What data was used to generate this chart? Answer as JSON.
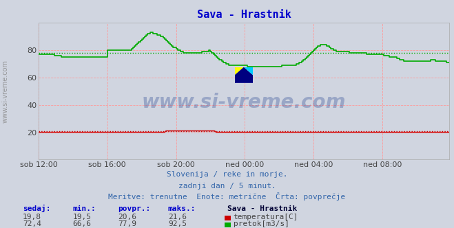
{
  "title": "Sava - Hrastnik",
  "title_color": "#0000cc",
  "bg_color": "#d0d5e0",
  "plot_bg_color": "#d0d5e0",
  "grid_color": "#ff9999",
  "text_color": "#3366aa",
  "watermark_text": "www.si-vreme.com",
  "watermark_color": "#1a3a8c",
  "subtitle1": "Slovenija / reke in morje.",
  "subtitle2": "zadnji dan / 5 minut.",
  "subtitle3": "Meritve: trenutne  Enote: metrične  Črta: povprečje",
  "xlim": [
    0,
    287
  ],
  "ylim": [
    0,
    100
  ],
  "yticks": [
    20,
    40,
    60,
    80
  ],
  "xtick_labels": [
    "sob 12:00",
    "sob 16:00",
    "sob 20:00",
    "ned 00:00",
    "ned 04:00",
    "ned 08:00"
  ],
  "xtick_positions": [
    0,
    48,
    96,
    144,
    192,
    240
  ],
  "temp_color": "#cc0000",
  "flow_color": "#00aa00",
  "avg_temp": 20.6,
  "avg_flow": 77.9,
  "table_headers": [
    "sedaj:",
    "min.:",
    "povpr.:",
    "maks.:"
  ],
  "table_temp": [
    "19,8",
    "19,5",
    "20,6",
    "21,6"
  ],
  "table_flow": [
    "72,4",
    "66,6",
    "77,9",
    "92,5"
  ],
  "station_label": "Sava - Hrastnik",
  "legend_temp": "temperatura[C]",
  "legend_flow": "pretok[m3/s]",
  "temp_data": [
    20,
    20,
    20,
    20,
    20,
    20,
    20,
    20,
    20,
    20,
    20,
    20,
    20,
    20,
    20,
    20,
    20,
    20,
    20,
    20,
    20,
    20,
    20,
    20,
    20,
    20,
    20,
    20,
    20,
    20,
    20,
    20,
    20,
    20,
    20,
    20,
    20,
    20,
    20,
    20,
    20,
    20,
    20,
    20,
    20,
    20,
    20,
    20,
    20,
    20,
    20,
    20,
    20,
    20,
    20,
    20,
    20,
    20,
    20,
    20,
    20,
    20,
    20,
    20,
    20,
    20,
    20,
    20,
    20,
    20,
    20,
    20,
    20,
    20,
    20,
    20,
    20,
    20,
    20,
    20,
    20,
    20,
    20,
    20,
    20,
    20,
    20,
    20,
    20,
    21,
    21,
    21,
    21,
    21,
    21,
    21,
    21,
    21,
    21,
    21,
    21,
    21,
    21,
    21,
    21,
    21,
    21,
    21,
    21,
    21,
    21,
    21,
    21,
    21,
    21,
    21,
    21,
    21,
    21,
    21,
    21,
    21,
    21,
    21,
    20,
    20,
    20,
    20,
    20,
    20,
    20,
    20,
    20,
    20,
    20,
    20,
    20,
    20,
    20,
    20,
    20,
    20,
    20,
    20,
    20,
    20,
    20,
    20,
    20,
    20,
    20,
    20,
    20,
    20,
    20,
    20,
    20,
    20,
    20,
    20,
    20,
    20,
    20,
    20,
    20,
    20,
    20,
    20,
    20,
    20,
    20,
    20,
    20,
    20,
    20,
    20,
    20,
    20,
    20,
    20,
    20,
    20,
    20,
    20,
    20,
    20,
    20,
    20,
    20,
    20,
    20,
    20,
    20,
    20,
    20,
    20,
    20,
    20,
    20,
    20,
    20,
    20,
    20,
    20,
    20,
    20,
    20,
    20,
    20,
    20,
    20,
    20,
    20,
    20,
    20,
    20,
    20,
    20,
    20,
    20,
    20,
    20,
    20,
    20,
    20,
    20,
    20,
    20,
    20,
    20,
    20,
    20,
    20,
    20,
    20,
    20,
    20,
    20,
    20,
    20,
    20,
    20,
    20,
    20,
    20,
    20,
    20,
    20,
    20,
    20,
    20,
    20,
    20,
    20,
    20,
    20,
    20,
    20,
    20,
    20,
    20,
    20,
    20,
    20,
    20,
    20,
    20,
    20,
    20,
    20,
    20,
    20,
    20,
    20,
    20,
    20,
    20,
    20,
    20,
    20,
    20,
    20,
    20,
    20,
    20,
    20,
    20,
    20
  ],
  "flow_data": [
    77,
    77,
    77,
    77,
    77,
    77,
    77,
    77,
    77,
    77,
    77,
    76,
    76,
    76,
    76,
    76,
    75,
    75,
    75,
    75,
    75,
    75,
    75,
    75,
    75,
    75,
    75,
    75,
    75,
    75,
    75,
    75,
    75,
    75,
    75,
    75,
    75,
    75,
    75,
    75,
    75,
    75,
    75,
    75,
    75,
    75,
    75,
    75,
    80,
    80,
    80,
    80,
    80,
    80,
    80,
    80,
    80,
    80,
    80,
    80,
    80,
    80,
    80,
    80,
    80,
    81,
    82,
    83,
    84,
    85,
    86,
    87,
    88,
    89,
    90,
    91,
    92,
    92,
    93,
    93,
    92,
    92,
    92,
    91,
    91,
    90,
    90,
    89,
    88,
    87,
    86,
    85,
    84,
    83,
    82,
    82,
    81,
    80,
    80,
    79,
    79,
    78,
    78,
    78,
    78,
    78,
    78,
    78,
    78,
    78,
    78,
    78,
    78,
    78,
    79,
    79,
    79,
    79,
    79,
    80,
    79,
    78,
    77,
    76,
    75,
    74,
    73,
    73,
    72,
    71,
    71,
    70,
    70,
    69,
    69,
    69,
    69,
    69,
    69,
    69,
    69,
    69,
    69,
    69,
    69,
    69,
    68,
    68,
    68,
    68,
    68,
    68,
    68,
    68,
    68,
    68,
    68,
    68,
    68,
    68,
    68,
    68,
    68,
    68,
    68,
    68,
    68,
    68,
    68,
    68,
    69,
    69,
    69,
    69,
    69,
    69,
    69,
    69,
    69,
    69,
    70,
    70,
    71,
    71,
    72,
    73,
    74,
    75,
    76,
    77,
    78,
    79,
    80,
    81,
    82,
    83,
    83,
    84,
    84,
    84,
    84,
    83,
    83,
    82,
    81,
    81,
    80,
    80,
    79,
    79,
    79,
    79,
    79,
    79,
    79,
    79,
    79,
    78,
    78,
    78,
    78,
    78,
    78,
    78,
    78,
    78,
    78,
    78,
    78,
    77,
    77,
    77,
    77,
    77,
    77,
    77,
    77,
    77,
    77,
    77,
    77,
    76,
    76,
    76,
    76,
    75,
    75,
    75,
    75,
    75,
    74,
    74,
    73,
    73,
    73,
    72,
    72,
    72,
    72,
    72,
    72,
    72,
    72,
    72,
    72,
    72,
    72,
    72,
    72,
    72,
    72,
    72,
    72,
    72,
    73,
    73,
    73,
    72,
    72,
    72,
    72,
    72,
    72,
    72,
    72,
    71,
    71,
    71
  ]
}
